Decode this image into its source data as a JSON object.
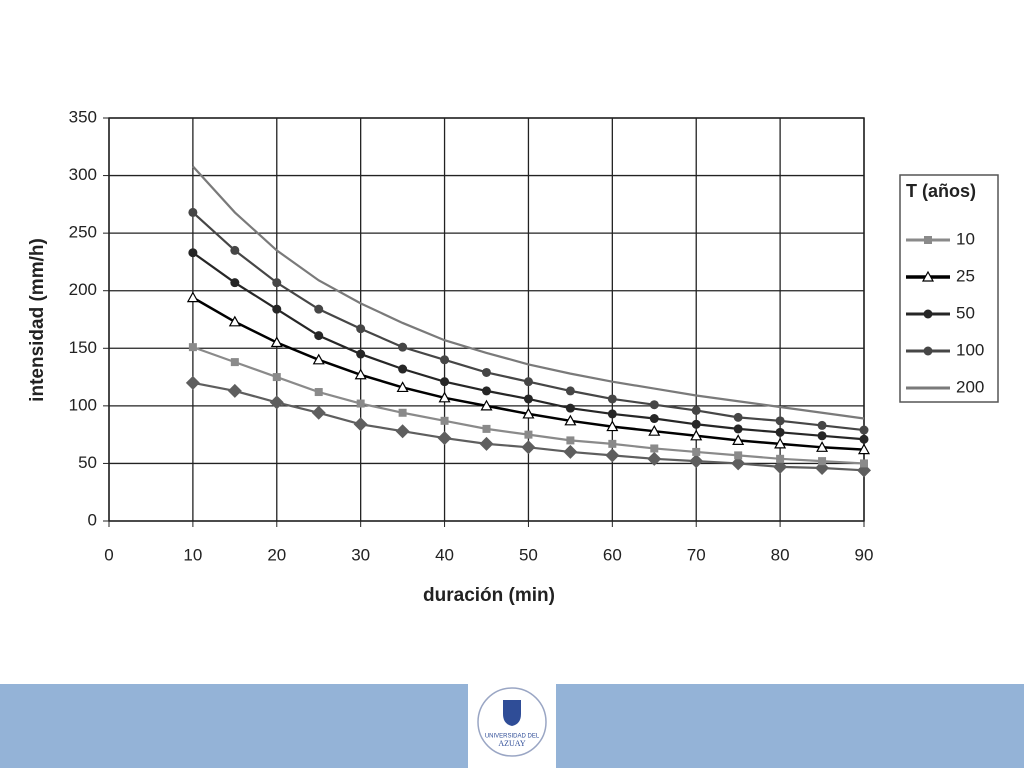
{
  "chart_data": {
    "type": "line",
    "xlabel": "duración (min)",
    "ylabel": "intensidad (mm/h)",
    "legend_title": "T (años)",
    "legend": "right",
    "grid": true,
    "xlim": [
      0,
      90
    ],
    "xticks": [
      0,
      10,
      20,
      30,
      40,
      50,
      60,
      70,
      80,
      90
    ],
    "ylim": [
      0,
      350
    ],
    "yticks": [
      0,
      50,
      100,
      150,
      200,
      250,
      300,
      350
    ],
    "x": [
      10,
      15,
      20,
      25,
      30,
      35,
      40,
      45,
      50,
      55,
      60,
      65,
      70,
      75,
      80,
      85,
      90
    ],
    "series": [
      {
        "color": "#5e5e5e",
        "marker": "diamond",
        "values": [
          120,
          113,
          103,
          94,
          84,
          78,
          72,
          67,
          64,
          60,
          57,
          54,
          52,
          50,
          47,
          46,
          44
        ]
      },
      {
        "name": "10",
        "color": "#8a8a8a",
        "marker": "square",
        "values": [
          151,
          138,
          125,
          112,
          102,
          94,
          87,
          80,
          75,
          70,
          67,
          63,
          60,
          57,
          54,
          52,
          50
        ]
      },
      {
        "name": "25",
        "color": "#000000",
        "marker": "triangle",
        "values": [
          194,
          173,
          155,
          140,
          127,
          116,
          107,
          100,
          93,
          87,
          82,
          78,
          74,
          70,
          67,
          64,
          62
        ]
      },
      {
        "name": "50",
        "color": "#262626",
        "marker": "circle",
        "values": [
          233,
          207,
          184,
          161,
          145,
          132,
          121,
          113,
          106,
          98,
          93,
          89,
          84,
          80,
          77,
          74,
          71
        ]
      },
      {
        "name": "100",
        "color": "#464646",
        "marker": "circle",
        "values": [
          268,
          235,
          207,
          184,
          167,
          151,
          140,
          129,
          121,
          113,
          106,
          101,
          96,
          90,
          87,
          83,
          79
        ]
      },
      {
        "name": "200",
        "color": "#7a7a7a",
        "marker": "none",
        "values": [
          308,
          268,
          235,
          209,
          189,
          172,
          157,
          146,
          136,
          128,
          121,
          115,
          109,
          104,
          99,
          94,
          89
        ]
      }
    ]
  },
  "footer": {
    "logo_text": [
      "UNIVERSIDAD DEL",
      "AZUAY"
    ]
  }
}
